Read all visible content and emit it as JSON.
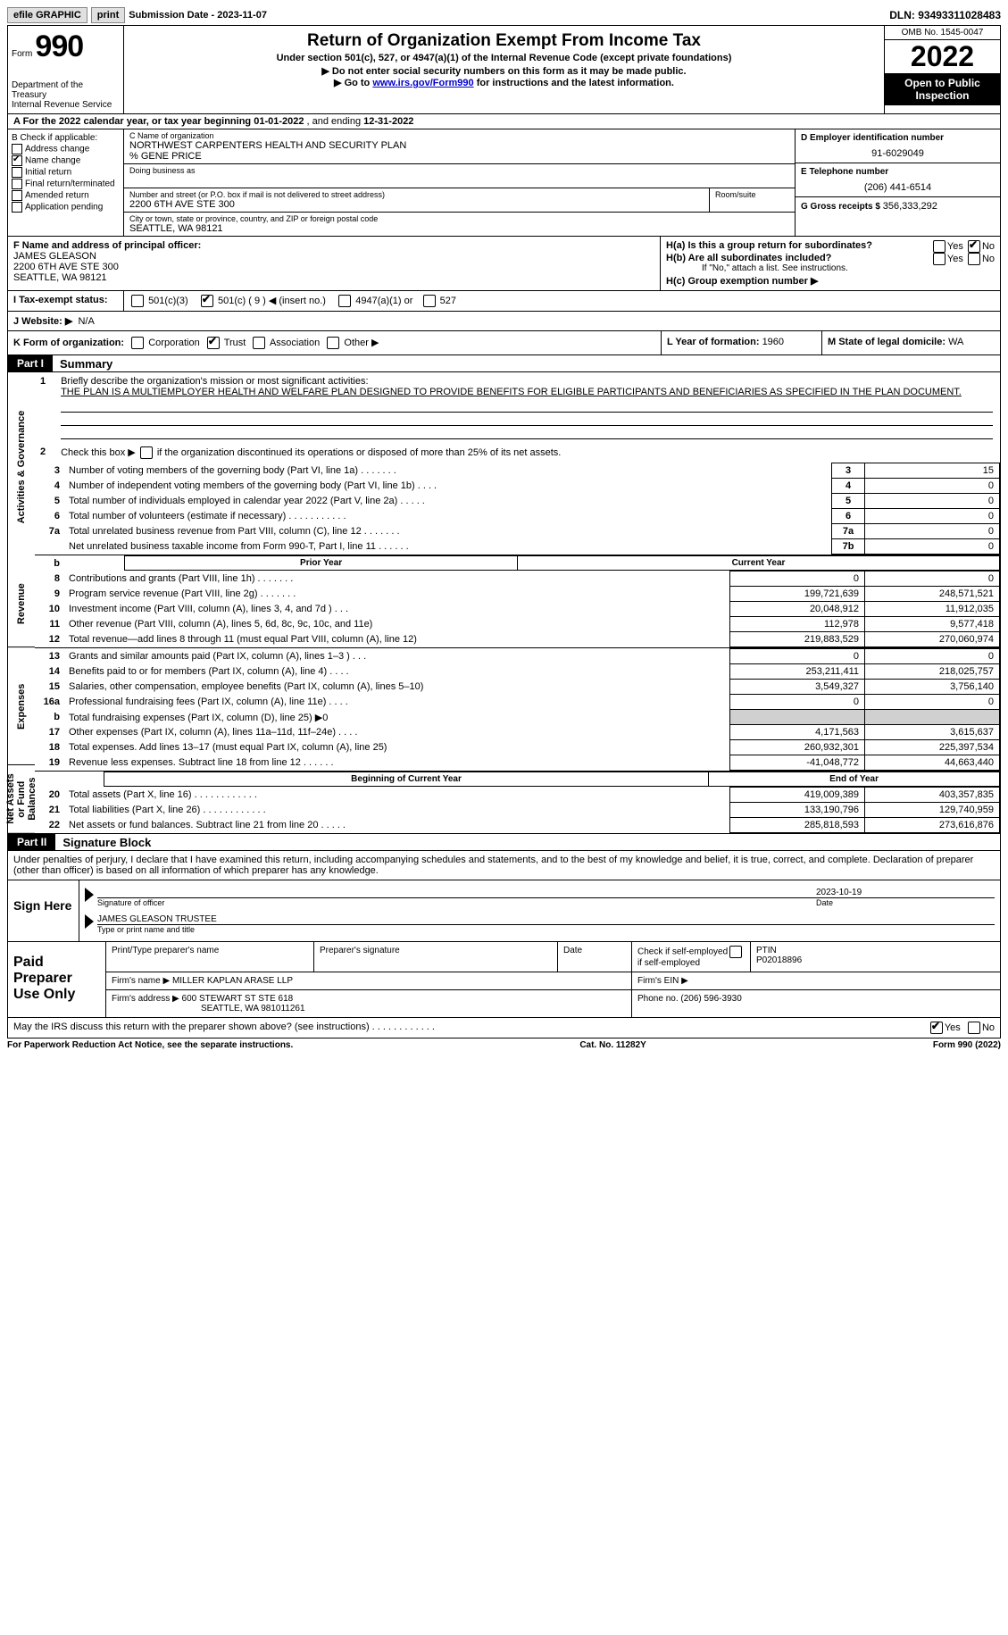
{
  "topbar": {
    "efile": "efile GRAPHIC",
    "print": "print",
    "sub_label": "Submission Date - ",
    "sub_date": "2023-11-07",
    "dln_label": "DLN: ",
    "dln": "93493311028483"
  },
  "header": {
    "form_word": "Form",
    "form_num": "990",
    "title": "Return of Organization Exempt From Income Tax",
    "sub1": "Under section 501(c), 527, or 4947(a)(1) of the Internal Revenue Code (except private foundations)",
    "sub2": "▶ Do not enter social security numbers on this form as it may be made public.",
    "sub3_pre": "▶ Go to ",
    "sub3_link": "www.irs.gov/Form990",
    "sub3_post": " for instructions and the latest information.",
    "dept": "Department of the Treasury",
    "irs": "Internal Revenue Service",
    "omb": "OMB No. 1545-0047",
    "year": "2022",
    "open": "Open to Public Inspection"
  },
  "rowA": {
    "pre": "A  For the 2022 calendar year, or tax year beginning ",
    "begin": "01-01-2022",
    "mid": "    , and ending ",
    "end": "12-31-2022"
  },
  "B": {
    "label": "B Check if applicable:",
    "opts": [
      "Address change",
      "Name change",
      "Initial return",
      "Final return/terminated",
      "Amended return",
      "Application pending"
    ],
    "checked_idx": 1
  },
  "C": {
    "name_lbl": "C Name of organization",
    "name": "NORTHWEST CARPENTERS HEALTH AND SECURITY PLAN",
    "care": "% GENE PRICE",
    "dba_lbl": "Doing business as",
    "addr_lbl": "Number and street (or P.O. box if mail is not delivered to street address)",
    "room_lbl": "Room/suite",
    "addr": "2200 6TH AVE STE 300",
    "city_lbl": "City or town, state or province, country, and ZIP or foreign postal code",
    "city": "SEATTLE, WA  98121"
  },
  "D": {
    "lbl": "D Employer identification number",
    "val": "91-6029049"
  },
  "E": {
    "lbl": "E Telephone number",
    "val": "(206) 441-6514"
  },
  "G": {
    "lbl": "G Gross receipts $ ",
    "val": "356,333,292"
  },
  "F": {
    "lbl": "F Name and address of principal officer:",
    "name": "JAMES GLEASON",
    "addr1": "2200 6TH AVE STE 300",
    "addr2": "SEATTLE, WA  98121"
  },
  "H": {
    "a_lbl": "H(a)  Is this a group return for subordinates?",
    "b_lbl": "H(b)  Are all subordinates included?",
    "b_note": "If \"No,\" attach a list. See instructions.",
    "c_lbl": "H(c)  Group exemption number ▶",
    "yes": "Yes",
    "no": "No"
  },
  "I": {
    "lbl": "I  Tax-exempt status:",
    "o1": "501(c)(3)",
    "o2": "501(c) ( 9 ) ◀ (insert no.)",
    "o3": "4947(a)(1) or",
    "o4": "527"
  },
  "J": {
    "lbl": "J  Website: ▶",
    "val": "N/A"
  },
  "K": {
    "lbl": "K Form of organization:",
    "o1": "Corporation",
    "o2": "Trust",
    "o3": "Association",
    "o4": "Other ▶"
  },
  "L": {
    "lbl": "L Year of formation: ",
    "val": "1960"
  },
  "M": {
    "lbl": "M State of legal domicile: ",
    "val": "WA"
  },
  "part1": {
    "lbl": "Part I",
    "title": "Summary"
  },
  "summary": {
    "q1_lbl": "Briefly describe the organization's mission or most significant activities:",
    "q1_val": "THE PLAN IS A MULTIEMPLOYER HEALTH AND WELFARE PLAN DESIGNED TO PROVIDE BENEFITS FOR ELIGIBLE PARTICIPANTS AND BENEFICIARIES AS SPECIFIED IN THE PLAN DOCUMENT.",
    "q2": "Check this box ▶        if the organization discontinued its operations or disposed of more than 25% of its net assets.",
    "lines_a": [
      {
        "n": "3",
        "d": "Number of voting members of the governing body (Part VI, line 1a)   .    .    .    .    .    .    .",
        "b": "3",
        "v": "15"
      },
      {
        "n": "4",
        "d": "Number of independent voting members of the governing body (Part VI, line 1b)   .    .    .    .",
        "b": "4",
        "v": "0"
      },
      {
        "n": "5",
        "d": "Total number of individuals employed in calendar year 2022 (Part V, line 2a)   .    .    .    .    .",
        "b": "5",
        "v": "0"
      },
      {
        "n": "6",
        "d": "Total number of volunteers (estimate if necessary)    .    .    .    .    .    .    .    .    .    .    .",
        "b": "6",
        "v": "0"
      },
      {
        "n": "7a",
        "d": "Total unrelated business revenue from Part VIII, column (C), line 12   .    .    .    .    .    .    .",
        "b": "7a",
        "v": "0"
      },
      {
        "n": "",
        "d": "Net unrelated business taxable income from Form 990-T, Part I, line 11   .    .    .    .    .    .",
        "b": "7b",
        "v": "0"
      }
    ],
    "hdr_b": "b",
    "hdr_prior": "Prior Year",
    "hdr_curr": "Current Year",
    "lines_rev": [
      {
        "n": "8",
        "d": "Contributions and grants (Part VIII, line 1h)   .    .    .    .    .    .    .",
        "p": "0",
        "c": "0"
      },
      {
        "n": "9",
        "d": "Program service revenue (Part VIII, line 2g)   .    .    .    .    .    .    .",
        "p": "199,721,639",
        "c": "248,571,521"
      },
      {
        "n": "10",
        "d": "Investment income (Part VIII, column (A), lines 3, 4, and 7d )   .    .    .",
        "p": "20,048,912",
        "c": "11,912,035"
      },
      {
        "n": "11",
        "d": "Other revenue (Part VIII, column (A), lines 5, 6d, 8c, 9c, 10c, and 11e)",
        "p": "112,978",
        "c": "9,577,418"
      },
      {
        "n": "12",
        "d": "Total revenue—add lines 8 through 11 (must equal Part VIII, column (A), line 12)",
        "p": "219,883,529",
        "c": "270,060,974"
      }
    ],
    "lines_exp": [
      {
        "n": "13",
        "d": "Grants and similar amounts paid (Part IX, column (A), lines 1–3 )   .    .    .",
        "p": "0",
        "c": "0"
      },
      {
        "n": "14",
        "d": "Benefits paid to or for members (Part IX, column (A), line 4)   .    .    .    .",
        "p": "253,211,411",
        "c": "218,025,757"
      },
      {
        "n": "15",
        "d": "Salaries, other compensation, employee benefits (Part IX, column (A), lines 5–10)",
        "p": "3,549,327",
        "c": "3,756,140"
      },
      {
        "n": "16a",
        "d": "Professional fundraising fees (Part IX, column (A), line 11e)   .    .    .    .",
        "p": "0",
        "c": "0"
      },
      {
        "n": "b",
        "d": "Total fundraising expenses (Part IX, column (D), line 25) ▶0",
        "p": "",
        "c": "",
        "shade": true
      },
      {
        "n": "17",
        "d": "Other expenses (Part IX, column (A), lines 11a–11d, 11f–24e)   .    .    .    .",
        "p": "4,171,563",
        "c": "3,615,637"
      },
      {
        "n": "18",
        "d": "Total expenses. Add lines 13–17 (must equal Part IX, column (A), line 25)",
        "p": "260,932,301",
        "c": "225,397,534"
      },
      {
        "n": "19",
        "d": "Revenue less expenses. Subtract line 18 from line 12   .    .    .    .    .    .",
        "p": "-41,048,772",
        "c": "44,663,440"
      }
    ],
    "hdr_begin": "Beginning of Current Year",
    "hdr_end": "End of Year",
    "lines_net": [
      {
        "n": "20",
        "d": "Total assets (Part X, line 16)   .    .    .    .    .    .    .    .    .    .    .    .",
        "p": "419,009,389",
        "c": "403,357,835"
      },
      {
        "n": "21",
        "d": "Total liabilities (Part X, line 26)  .    .    .    .    .    .    .    .    .    .    .    .",
        "p": "133,190,796",
        "c": "129,740,959"
      },
      {
        "n": "22",
        "d": "Net assets or fund balances. Subtract line 21 from line 20   .    .    .    .    .",
        "p": "285,818,593",
        "c": "273,616,876"
      }
    ],
    "vlabels": [
      "Activities & Governance",
      "Revenue",
      "Expenses",
      "Net Assets or Fund Balances"
    ]
  },
  "part2": {
    "lbl": "Part II",
    "title": "Signature Block"
  },
  "sig": {
    "intro": "Under penalties of perjury, I declare that I have examined this return, including accompanying schedules and statements, and to the best of my knowledge and belief, it is true, correct, and complete. Declaration of preparer (other than officer) is based on all information of which preparer has any knowledge.",
    "here": "Sign Here",
    "sig_lbl": "Signature of officer",
    "date": "2023-10-19",
    "date_lbl": "Date",
    "name": "JAMES GLEASON  TRUSTEE",
    "name_lbl": "Type or print name and title"
  },
  "prep": {
    "here": "Paid Preparer Use Only",
    "h1": "Print/Type preparer's name",
    "h2": "Preparer's signature",
    "h3": "Date",
    "h4_pre": "Check          if self-employed",
    "h5": "PTIN",
    "ptin": "P02018896",
    "firm_lbl": "Firm's name      ▶",
    "firm": "MILLER KAPLAN ARASE LLP",
    "ein_lbl": "Firm's EIN ▶",
    "addr_lbl": "Firm's address ▶",
    "addr1": "600 STEWART ST STE 618",
    "addr2": "SEATTLE, WA  981011261",
    "phone_lbl": "Phone no. ",
    "phone": "(206) 596-3930"
  },
  "footer": {
    "q": "May the IRS discuss this return with the preparer shown above? (see instructions)   .    .    .    .    .    .    .    .    .    .    .    .",
    "yes": "Yes",
    "no": "No",
    "pra": "For Paperwork Reduction Act Notice, see the separate instructions.",
    "cat": "Cat. No. 11282Y",
    "form": "Form 990 (2022)"
  }
}
